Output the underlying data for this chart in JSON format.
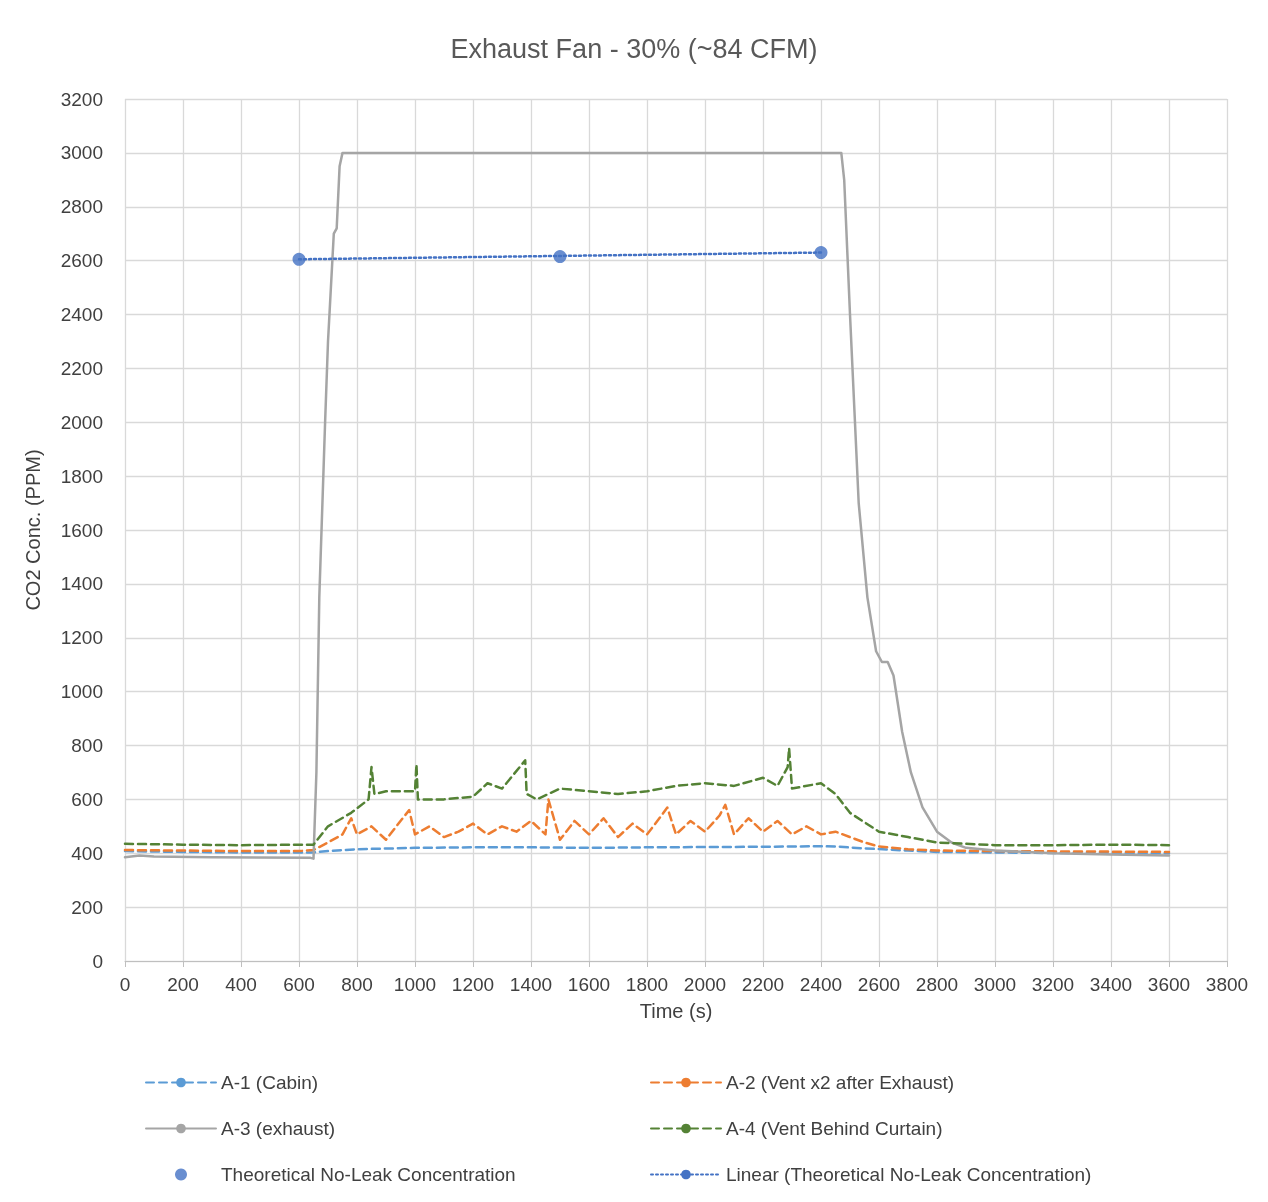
{
  "chart_data": {
    "type": "line",
    "title": "Exhaust Fan - 30% (~84 CFM)",
    "xlabel": "Time (s)",
    "ylabel": "CO2 Conc. (PPM)",
    "xlim": [
      0,
      3800
    ],
    "xticks": [
      0,
      200,
      400,
      600,
      800,
      1000,
      1200,
      1400,
      1600,
      1800,
      2000,
      2200,
      2400,
      2600,
      2800,
      3000,
      3200,
      3400,
      3600,
      3800
    ],
    "ylim": [
      0,
      3200
    ],
    "yticks": [
      0,
      200,
      400,
      600,
      800,
      1000,
      1200,
      1400,
      1600,
      1800,
      2000,
      2200,
      2400,
      2600,
      2800,
      3000,
      3200
    ],
    "grid": true,
    "legend": "bottom",
    "marker": "none",
    "series": [
      {
        "name": "A-1 (Cabin)",
        "color": "#5b9bd5",
        "line_style": "dashed",
        "x": [
          0,
          200,
          400,
          650,
          700,
          800,
          1000,
          1200,
          1400,
          1600,
          1800,
          2000,
          2200,
          2400,
          2450,
          2550,
          2700,
          2800,
          3000,
          3200,
          3400,
          3600
        ],
        "values": [
          408,
          405,
          403,
          403,
          408,
          415,
          420,
          422,
          422,
          420,
          422,
          423,
          424,
          426,
          425,
          418,
          410,
          405,
          403,
          401,
          400,
          400
        ]
      },
      {
        "name": "A-2 (Vent x2 after Exhaust)",
        "color": "#ed7d31",
        "line_style": "dashed",
        "x": [
          0,
          200,
          400,
          600,
          650,
          700,
          750,
          780,
          800,
          850,
          900,
          950,
          980,
          1000,
          1050,
          1100,
          1150,
          1200,
          1250,
          1300,
          1350,
          1400,
          1450,
          1460,
          1500,
          1550,
          1600,
          1650,
          1700,
          1750,
          1800,
          1850,
          1870,
          1900,
          1950,
          2000,
          2050,
          2070,
          2100,
          2150,
          2200,
          2250,
          2300,
          2350,
          2400,
          2450,
          2500,
          2550,
          2600,
          2700,
          2800,
          3000,
          3200,
          3400,
          3600
        ],
        "values": [
          412,
          410,
          408,
          408,
          412,
          440,
          470,
          530,
          470,
          500,
          450,
          520,
          560,
          470,
          500,
          460,
          480,
          510,
          470,
          500,
          480,
          520,
          470,
          600,
          450,
          520,
          470,
          530,
          460,
          510,
          470,
          540,
          570,
          470,
          520,
          480,
          540,
          580,
          470,
          530,
          480,
          520,
          470,
          500,
          470,
          480,
          460,
          440,
          425,
          415,
          410,
          408,
          407,
          406,
          405
        ]
      },
      {
        "name": "A-3 (exhaust)",
        "color": "#a5a5a5",
        "line_style": "solid",
        "x": [
          0,
          50,
          100,
          300,
          640,
          650,
          660,
          670,
          690,
          700,
          720,
          730,
          740,
          750,
          2470,
          2480,
          2500,
          2530,
          2560,
          2590,
          2610,
          2630,
          2650,
          2680,
          2710,
          2750,
          2800,
          2850,
          2900,
          3000,
          3200,
          3400,
          3600
        ],
        "values": [
          385,
          392,
          388,
          385,
          383,
          380,
          700,
          1350,
          2000,
          2300,
          2700,
          2720,
          2950,
          3000,
          3000,
          2900,
          2400,
          1700,
          1350,
          1150,
          1110,
          1110,
          1060,
          850,
          700,
          570,
          480,
          440,
          420,
          410,
          400,
          395,
          392
        ]
      },
      {
        "name": "A-4 (Vent Behind Curtain)",
        "color": "#548235",
        "line_style": "dashed",
        "x": [
          0,
          200,
          400,
          650,
          700,
          780,
          840,
          850,
          860,
          900,
          1000,
          1005,
          1010,
          1100,
          1200,
          1250,
          1300,
          1380,
          1385,
          1420,
          1500,
          1600,
          1700,
          1800,
          1900,
          2000,
          2100,
          2200,
          2250,
          2285,
          2290,
          2300,
          2400,
          2450,
          2500,
          2600,
          2700,
          2800,
          3000,
          3200,
          3400,
          3600
        ],
        "values": [
          435,
          432,
          430,
          432,
          500,
          550,
          600,
          720,
          620,
          630,
          630,
          730,
          600,
          600,
          610,
          660,
          640,
          745,
          620,
          600,
          640,
          630,
          620,
          630,
          650,
          660,
          650,
          680,
          650,
          720,
          790,
          640,
          660,
          620,
          550,
          480,
          460,
          440,
          430,
          430,
          432,
          430
        ]
      },
      {
        "name": "Theoretical No-Leak Concentration",
        "type": "scatter",
        "marker": "circle",
        "color": "#4472c4",
        "x": [
          600,
          1500,
          2400
        ],
        "values": [
          2605,
          2615,
          2630
        ]
      },
      {
        "name": "Linear (Theoretical No-Leak Concentration)",
        "color": "#4472c4",
        "line_style": "dotted",
        "x": [
          600,
          2400
        ],
        "values": [
          2605,
          2630
        ]
      }
    ]
  }
}
